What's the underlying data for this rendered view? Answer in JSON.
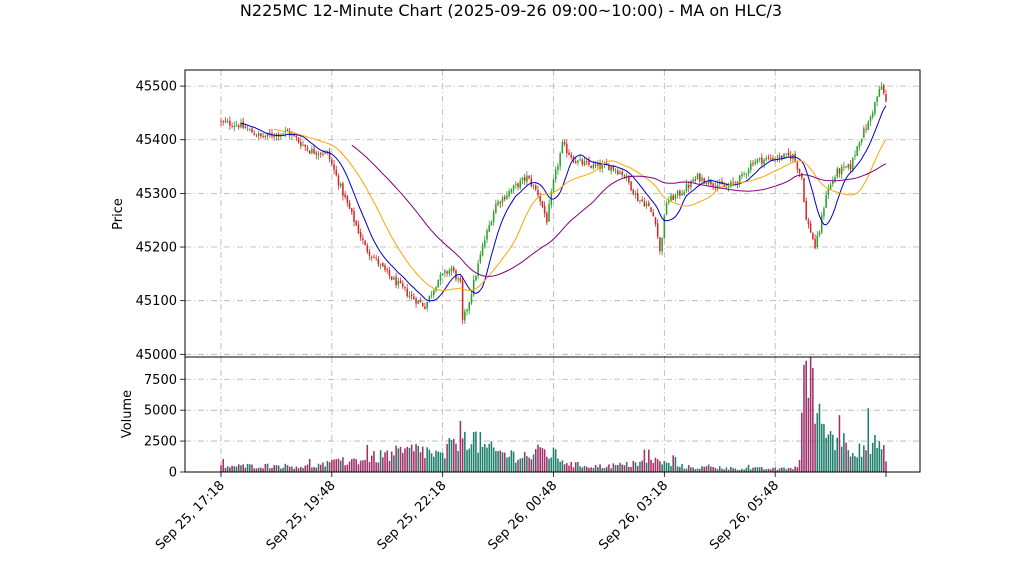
{
  "chart_data": {
    "type": "candlestick",
    "title": "N225MC 12-Minute Chart (2025-09-26 09:00~10:00) - MA on HLC/3",
    "ylabel_price": "Price",
    "ylabel_volume": "Volume",
    "price_ylim": [
      44995,
      45530
    ],
    "price_ticks": [
      45000,
      45100,
      45200,
      45300,
      45400,
      45500
    ],
    "volume_ylim": [
      0,
      9300
    ],
    "volume_ticks": [
      0,
      2500,
      5000,
      7500
    ],
    "volume_tick_labels": [
      "0",
      "2500",
      "5000",
      "7500"
    ],
    "x_tick_labels": [
      "Sep 25, 17:18",
      "Sep 25, 19:48",
      "Sep 25, 22:18",
      "Sep 26, 00:48",
      "Sep 26, 03:18",
      "Sep 26, 05:48"
    ],
    "x_tick_index": [
      0,
      50,
      100,
      150,
      200,
      250
    ],
    "bar_count": 301,
    "grid": true,
    "colors": {
      "up": "#2ca02c",
      "down": "#d62728",
      "ma_fast": "#0000cc",
      "ma_mid": "#ffa500",
      "ma_slow": "#800080",
      "vol_up": "#1b7f6a",
      "vol_down": "#a0306a"
    },
    "close_anchors": [
      [
        0,
        45432
      ],
      [
        8,
        45428
      ],
      [
        18,
        45405
      ],
      [
        30,
        45415
      ],
      [
        40,
        45380
      ],
      [
        48,
        45375
      ],
      [
        55,
        45300
      ],
      [
        65,
        45200
      ],
      [
        75,
        45150
      ],
      [
        85,
        45110
      ],
      [
        92,
        45090
      ],
      [
        98,
        45140
      ],
      [
        104,
        45160
      ],
      [
        108,
        45130
      ],
      [
        109,
        45060
      ],
      [
        112,
        45100
      ],
      [
        118,
        45200
      ],
      [
        124,
        45280
      ],
      [
        132,
        45310
      ],
      [
        138,
        45330
      ],
      [
        143,
        45300
      ],
      [
        147,
        45250
      ],
      [
        150,
        45320
      ],
      [
        154,
        45390
      ],
      [
        160,
        45360
      ],
      [
        168,
        45350
      ],
      [
        176,
        45350
      ],
      [
        182,
        45335
      ],
      [
        188,
        45290
      ],
      [
        192,
        45280
      ],
      [
        196,
        45250
      ],
      [
        198,
        45190
      ],
      [
        201,
        45285
      ],
      [
        207,
        45300
      ],
      [
        215,
        45330
      ],
      [
        222,
        45320
      ],
      [
        228,
        45310
      ],
      [
        235,
        45330
      ],
      [
        240,
        45360
      ],
      [
        248,
        45365
      ],
      [
        258,
        45370
      ],
      [
        262,
        45330
      ],
      [
        264,
        45250
      ],
      [
        266,
        45230
      ],
      [
        268,
        45200
      ],
      [
        270,
        45230
      ],
      [
        273,
        45300
      ],
      [
        278,
        45340
      ],
      [
        284,
        45350
      ],
      [
        288,
        45400
      ],
      [
        292,
        45430
      ],
      [
        296,
        45480
      ],
      [
        298,
        45500
      ],
      [
        300,
        45470
      ]
    ],
    "volume_anchors": [
      [
        0,
        450
      ],
      [
        20,
        500
      ],
      [
        40,
        450
      ],
      [
        55,
        800
      ],
      [
        70,
        1200
      ],
      [
        80,
        1500
      ],
      [
        90,
        1800
      ],
      [
        100,
        1200
      ],
      [
        106,
        2600
      ],
      [
        110,
        3300
      ],
      [
        114,
        2700
      ],
      [
        120,
        1800
      ],
      [
        130,
        1400
      ],
      [
        140,
        1300
      ],
      [
        145,
        1700
      ],
      [
        150,
        1400
      ],
      [
        158,
        600
      ],
      [
        170,
        450
      ],
      [
        185,
        600
      ],
      [
        195,
        900
      ],
      [
        200,
        700
      ],
      [
        210,
        400
      ],
      [
        230,
        300
      ],
      [
        255,
        250
      ],
      [
        260,
        400
      ],
      [
        262,
        2500
      ],
      [
        264,
        5500
      ],
      [
        266,
        6800
      ],
      [
        268,
        5000
      ],
      [
        272,
        3200
      ],
      [
        278,
        2800
      ],
      [
        284,
        2000
      ],
      [
        290,
        2200
      ],
      [
        296,
        1800
      ],
      [
        300,
        1500
      ]
    ]
  }
}
